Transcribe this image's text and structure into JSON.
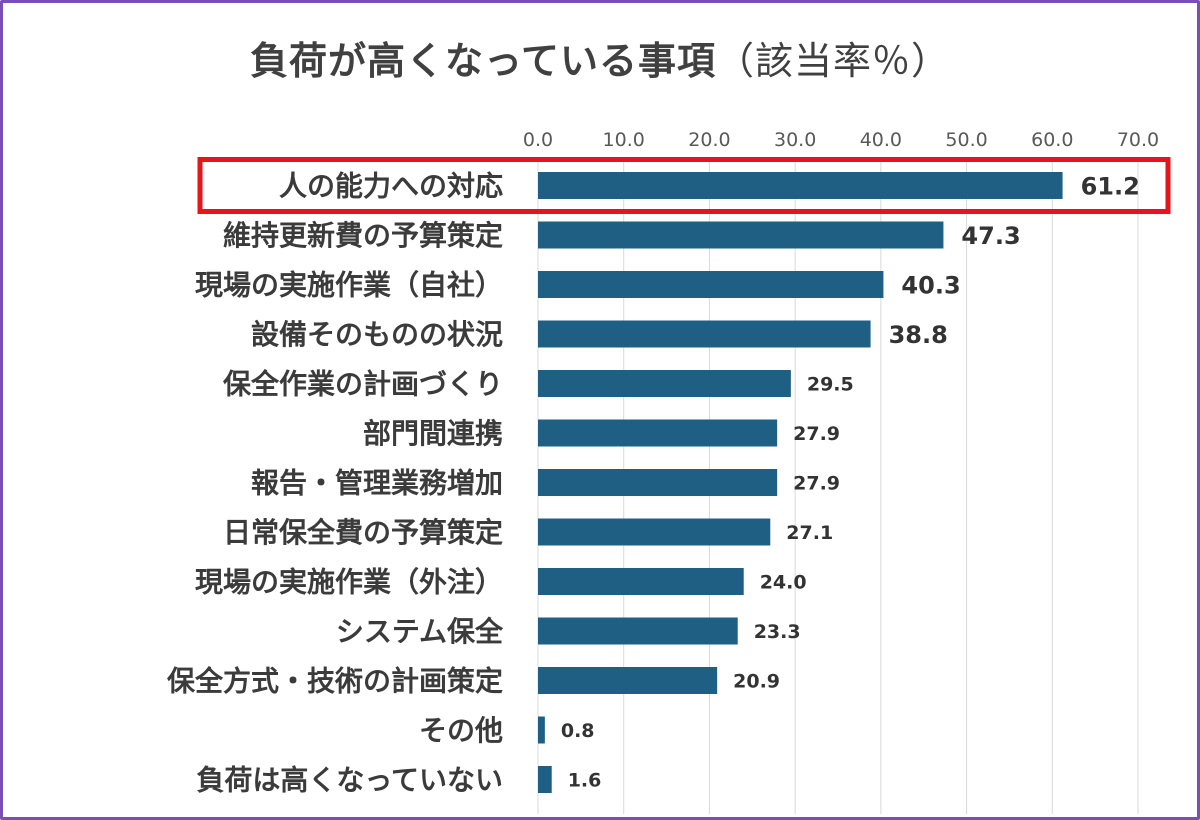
{
  "chart_data": {
    "type": "bar",
    "orientation": "horizontal",
    "title": "負荷が高くなっている事項",
    "subtitle": "（該当率％）",
    "categories": [
      "人の能力への対応",
      "維持更新費の予算策定",
      "現場の実施作業（自社）",
      "設備そのものの状況",
      "保全作業の計画づくり",
      "部門間連携",
      "報告・管理業務増加",
      "日常保全費の予算策定",
      "現場の実施作業（外注）",
      "システム保全",
      "保全方式・技術の計画策定",
      "その他",
      "負荷は高くなっていない"
    ],
    "values": [
      61.2,
      47.3,
      40.3,
      38.8,
      29.5,
      27.9,
      27.9,
      27.1,
      24.0,
      23.3,
      20.9,
      0.8,
      1.6
    ],
    "value_labels": [
      "61.2",
      "47.3",
      "40.3",
      "38.8",
      "29.5",
      "27.9",
      "27.9",
      "27.1",
      "24.0",
      "23.3",
      "20.9",
      "0.8",
      "1.6"
    ],
    "xlim": [
      0,
      70
    ],
    "ticks": [
      "0.0",
      "10.0",
      "20.0",
      "30.0",
      "40.0",
      "50.0",
      "60.0",
      "70.0"
    ],
    "tick_values": [
      0,
      10,
      20,
      30,
      40,
      50,
      60,
      70
    ],
    "axis_position": "top",
    "grid": true,
    "highlight_index": 0,
    "colors": {
      "bar": "#1f5f84",
      "highlight_box": "#e8141b",
      "grid": "#d9d9d9",
      "frame": "#7a4fb5"
    }
  }
}
